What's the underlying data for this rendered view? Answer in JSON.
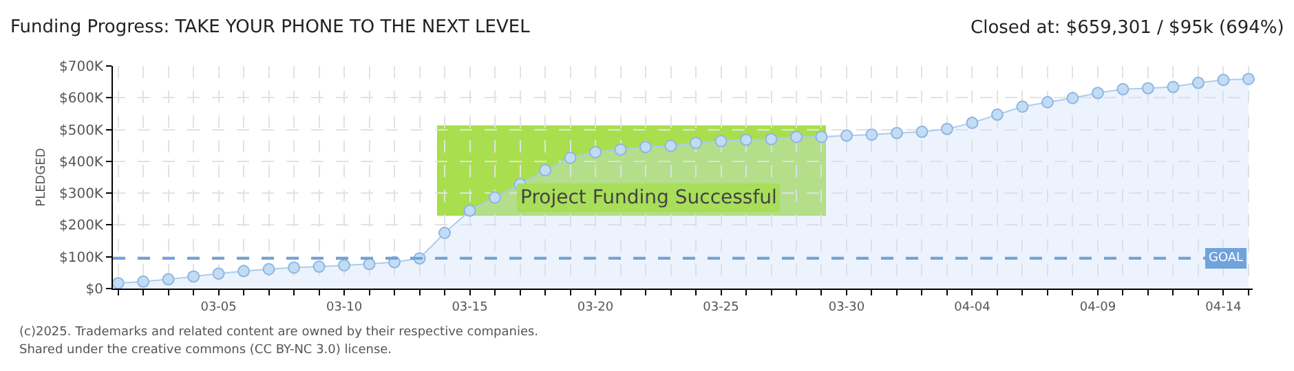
{
  "chart_data": {
    "type": "area",
    "title": "Funding Progress: TAKE YOUR PHONE TO THE NEXT LEVEL",
    "ylabel": "PLEDGED",
    "x": [
      "--03-01",
      "--03-02",
      "--03-03",
      "--03-04",
      "--03-05",
      "--03-06",
      "--03-07",
      "--03-08",
      "--03-09",
      "--03-10",
      "--03-11",
      "--03-12",
      "--03-13",
      "--03-14",
      "--03-15",
      "--03-16",
      "--03-17",
      "--03-18",
      "--03-19",
      "--03-20",
      "--03-21",
      "--03-22",
      "--03-23",
      "--03-24",
      "--03-25",
      "--03-26",
      "--03-27",
      "--03-28",
      "--03-29",
      "--03-30",
      "--03-31",
      "--04-01",
      "--04-02",
      "--04-03",
      "--04-04",
      "--04-05",
      "--04-06",
      "--04-07",
      "--04-08",
      "--04-09",
      "--04-10",
      "--04-11",
      "--04-12",
      "--04-13",
      "--04-14",
      "--04-15"
    ],
    "series": [
      {
        "color": "#a9cdf0",
        "values": [
          17000,
          22000,
          29000,
          38000,
          47000,
          55000,
          61000,
          66000,
          69000,
          73000,
          77000,
          83000,
          95000,
          175000,
          245000,
          286000,
          328000,
          372000,
          411000,
          429000,
          437000,
          445000,
          449000,
          458000,
          464000,
          468000,
          470000,
          477000,
          477000,
          481000,
          484000,
          489000,
          493000,
          502000,
          521000,
          547000,
          572000,
          586000,
          599000,
          615000,
          627000,
          630000,
          634000,
          647000,
          656000,
          659000
        ]
      }
    ],
    "xlim": [
      "--02-28T19:00",
      "--04-15T04:00"
    ],
    "xticks": [
      {
        "value": "--03-01",
        "label": null
      },
      {
        "value": "--03-02",
        "label": null
      },
      {
        "value": "--03-03",
        "label": null
      },
      {
        "value": "--03-04",
        "label": null
      },
      {
        "value": "--03-05",
        "label": "03-05"
      },
      {
        "value": "--03-06",
        "label": null
      },
      {
        "value": "--03-07",
        "label": null
      },
      {
        "value": "--03-08",
        "label": null
      },
      {
        "value": "--03-09",
        "label": null
      },
      {
        "value": "--03-10",
        "label": "03-10"
      },
      {
        "value": "--03-11",
        "label": null
      },
      {
        "value": "--03-12",
        "label": null
      },
      {
        "value": "--03-13",
        "label": null
      },
      {
        "value": "--03-14",
        "label": null
      },
      {
        "value": "--03-15",
        "label": "03-15"
      },
      {
        "value": "--03-16",
        "label": null
      },
      {
        "value": "--03-17",
        "label": null
      },
      {
        "value": "--03-18",
        "label": null
      },
      {
        "value": "--03-19",
        "label": null
      },
      {
        "value": "--03-20",
        "label": "03-20"
      },
      {
        "value": "--03-21",
        "label": null
      },
      {
        "value": "--03-22",
        "label": null
      },
      {
        "value": "--03-23",
        "label": null
      },
      {
        "value": "--03-24",
        "label": null
      },
      {
        "value": "--03-25",
        "label": "03-25"
      },
      {
        "value": "--03-26",
        "label": null
      },
      {
        "value": "--03-27",
        "label": null
      },
      {
        "value": "--03-28",
        "label": null
      },
      {
        "value": "--03-29",
        "label": null
      },
      {
        "value": "--03-30",
        "label": "03-30"
      },
      {
        "value": "--03-31",
        "label": null
      },
      {
        "value": "--04-01",
        "label": null
      },
      {
        "value": "--04-02",
        "label": null
      },
      {
        "value": "--04-03",
        "label": null
      },
      {
        "value": "--04-04",
        "label": "04-04"
      },
      {
        "value": "--04-05",
        "label": null
      },
      {
        "value": "--04-06",
        "label": null
      },
      {
        "value": "--04-07",
        "label": null
      },
      {
        "value": "--04-08",
        "label": null
      },
      {
        "value": "--04-09",
        "label": "04-09"
      },
      {
        "value": "--04-10",
        "label": null
      },
      {
        "value": "--04-11",
        "label": null
      },
      {
        "value": "--04-12",
        "label": null
      },
      {
        "value": "--04-13",
        "label": null
      },
      {
        "value": "--04-14",
        "label": "04-14"
      },
      {
        "value": "--04-15",
        "label": null
      }
    ],
    "ylim": [
      0,
      700000
    ],
    "yticks": [
      {
        "value": 0,
        "label": "$0"
      },
      {
        "value": 100000,
        "label": "$100K"
      },
      {
        "value": 200000,
        "label": "$200K"
      },
      {
        "value": 300000,
        "label": "$300K"
      },
      {
        "value": 400000,
        "label": "$400K"
      },
      {
        "value": 500000,
        "label": "$500K"
      },
      {
        "value": 600000,
        "label": "$600K"
      },
      {
        "value": 700000,
        "label": "$700K"
      }
    ],
    "ref_lines": [
      {
        "axis": "y",
        "value": 95000,
        "label": "GOAL",
        "color": "#6fa3dc",
        "line_style": "dashed"
      }
    ],
    "annotations": [
      "Closed at: $659,301 / $95k (694%)",
      "Project Funding Successful",
      "(c)2025. Trademarks and related content are owned by their respective companies.",
      "Shared under the creative commons (CC BY-NC 3.0) license."
    ],
    "grid": true,
    "legend": false,
    "marker": "circle",
    "line_style": "solid"
  }
}
